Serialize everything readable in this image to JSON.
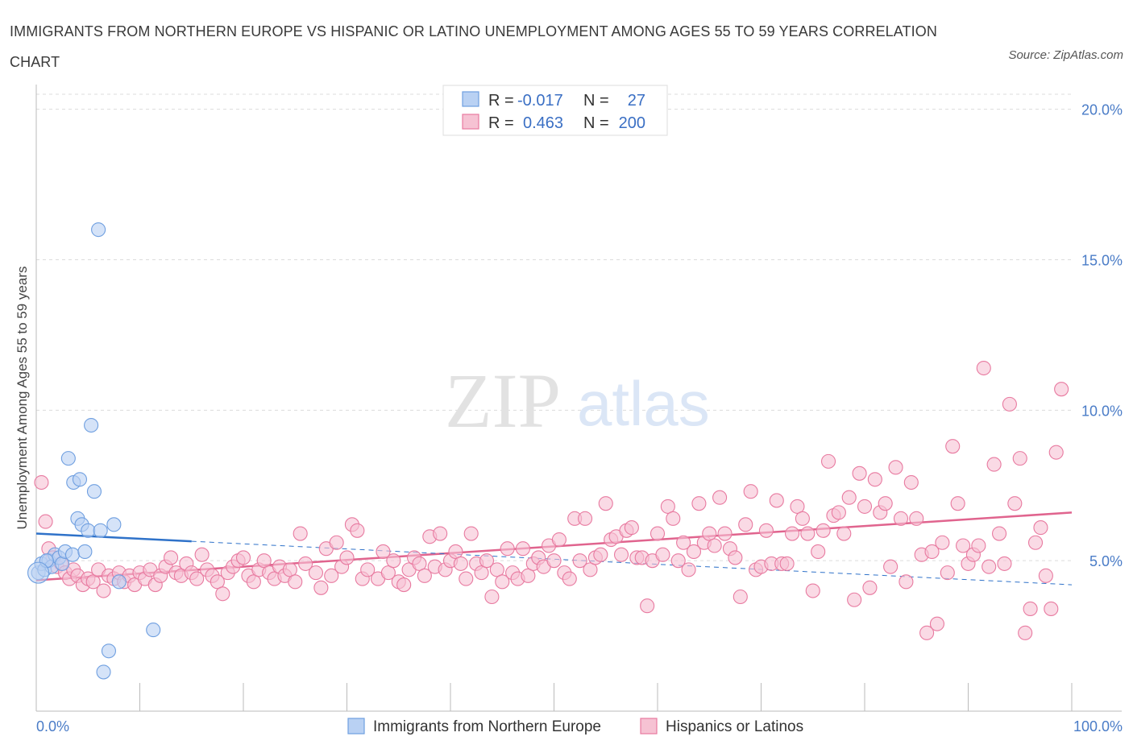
{
  "title": "IMMIGRANTS FROM NORTHERN EUROPE VS HISPANIC OR LATINO UNEMPLOYMENT AMONG AGES 55 TO 59 YEARS CORRELATION CHART",
  "source": "Source: ZipAtlas.com",
  "watermark": {
    "zip": "ZIP",
    "atlas": "atlas"
  },
  "colors": {
    "blue": "#6f9fe0",
    "blue_fill": "#b9d1f3",
    "blue_line": "#2f72c9",
    "pink": "#e87aa0",
    "pink_fill": "#f6c2d3",
    "pink_line": "#e0648e",
    "axis_text": "#4a7cc7"
  },
  "legend": {
    "rows": [
      {
        "r_label": "R =",
        "r_value": "-0.017",
        "n_label": "N =",
        "n_value": "27"
      },
      {
        "r_label": "R =",
        "r_value": "0.463",
        "n_label": "N =",
        "n_value": "200"
      }
    ]
  },
  "chart_data": {
    "type": "scatter",
    "title": "IMMIGRANTS FROM NORTHERN EUROPE VS HISPANIC OR LATINO UNEMPLOYMENT AMONG AGES 55 TO 59 YEARS CORRELATION CHART",
    "xlabel": "",
    "ylabel": "Unemployment Among Ages 55 to 59 years",
    "xlim": [
      0,
      100
    ],
    "ylim": [
      0,
      20.5
    ],
    "x_tick_labels": [
      "0.0%",
      "100.0%"
    ],
    "y_ticks": [
      5,
      10,
      15,
      20
    ],
    "y_tick_labels": [
      "5.0%",
      "10.0%",
      "15.0%",
      "20.0%"
    ],
    "grid": true,
    "legend_position": "top-center",
    "series": [
      {
        "name": "Immigrants from Northern Europe",
        "color": "#6f9fe0",
        "trend": {
          "x0": 0,
          "y0": 5.9,
          "x1": 100,
          "y1": 4.2,
          "solid_until": 15
        },
        "points": [
          [
            0.2,
            4.6
          ],
          [
            0.5,
            4.9
          ],
          [
            0.8,
            4.7
          ],
          [
            1.2,
            5.0
          ],
          [
            1.5,
            4.8
          ],
          [
            1.8,
            5.2
          ],
          [
            2.2,
            5.1
          ],
          [
            2.5,
            4.9
          ],
          [
            2.8,
            5.3
          ],
          [
            3.1,
            8.4
          ],
          [
            3.5,
            5.2
          ],
          [
            3.6,
            7.6
          ],
          [
            4.0,
            6.4
          ],
          [
            4.2,
            7.7
          ],
          [
            4.4,
            6.2
          ],
          [
            4.7,
            5.3
          ],
          [
            5.0,
            6.0
          ],
          [
            5.3,
            9.5
          ],
          [
            5.6,
            7.3
          ],
          [
            6.0,
            16.0
          ],
          [
            6.2,
            6.0
          ],
          [
            6.5,
            1.3
          ],
          [
            7.0,
            2.0
          ],
          [
            7.5,
            6.2
          ],
          [
            8.0,
            4.3
          ],
          [
            11.3,
            2.7
          ],
          [
            1.0,
            5.0
          ]
        ]
      },
      {
        "name": "Hispanics or Latinos",
        "color": "#e87aa0",
        "trend": {
          "x0": 0,
          "y0": 4.35,
          "x1": 100,
          "y1": 6.6
        },
        "points": [
          [
            0.5,
            7.6
          ],
          [
            0.9,
            6.3
          ],
          [
            1.2,
            5.4
          ],
          [
            1.6,
            5.1
          ],
          [
            2.0,
            4.8
          ],
          [
            2.4,
            4.9
          ],
          [
            2.8,
            4.6
          ],
          [
            3.2,
            4.4
          ],
          [
            3.6,
            4.7
          ],
          [
            4.0,
            4.5
          ],
          [
            4.5,
            4.2
          ],
          [
            5.0,
            4.4
          ],
          [
            5.5,
            4.3
          ],
          [
            6.0,
            4.7
          ],
          [
            6.5,
            4.0
          ],
          [
            7.0,
            4.5
          ],
          [
            7.5,
            4.4
          ],
          [
            8.0,
            4.6
          ],
          [
            8.5,
            4.3
          ],
          [
            9.0,
            4.5
          ],
          [
            9.5,
            4.2
          ],
          [
            10.0,
            4.6
          ],
          [
            10.5,
            4.4
          ],
          [
            11.0,
            4.7
          ],
          [
            11.5,
            4.2
          ],
          [
            12.0,
            4.5
          ],
          [
            12.5,
            4.8
          ],
          [
            13.0,
            5.1
          ],
          [
            13.5,
            4.6
          ],
          [
            14.0,
            4.5
          ],
          [
            14.5,
            4.9
          ],
          [
            15.0,
            4.6
          ],
          [
            15.5,
            4.4
          ],
          [
            16.0,
            5.2
          ],
          [
            16.5,
            4.7
          ],
          [
            17.0,
            4.5
          ],
          [
            17.5,
            4.3
          ],
          [
            18.0,
            3.9
          ],
          [
            18.5,
            4.6
          ],
          [
            19.0,
            4.8
          ],
          [
            19.5,
            5.0
          ],
          [
            20.0,
            5.1
          ],
          [
            20.5,
            4.5
          ],
          [
            21.0,
            4.3
          ],
          [
            21.5,
            4.7
          ],
          [
            22.0,
            5.0
          ],
          [
            22.5,
            4.6
          ],
          [
            23.0,
            4.4
          ],
          [
            23.5,
            4.8
          ],
          [
            24.0,
            4.5
          ],
          [
            24.5,
            4.7
          ],
          [
            25.0,
            4.3
          ],
          [
            25.5,
            5.9
          ],
          [
            26.0,
            4.9
          ],
          [
            27.0,
            4.6
          ],
          [
            27.5,
            4.1
          ],
          [
            28.0,
            5.4
          ],
          [
            28.5,
            4.5
          ],
          [
            29.0,
            5.6
          ],
          [
            29.5,
            4.8
          ],
          [
            30.0,
            5.1
          ],
          [
            30.5,
            6.2
          ],
          [
            31.0,
            6.0
          ],
          [
            31.5,
            4.4
          ],
          [
            32.0,
            4.7
          ],
          [
            33.0,
            4.4
          ],
          [
            33.5,
            5.3
          ],
          [
            34.0,
            4.6
          ],
          [
            34.5,
            5.0
          ],
          [
            35.0,
            4.3
          ],
          [
            35.5,
            4.2
          ],
          [
            36.0,
            4.7
          ],
          [
            36.5,
            5.1
          ],
          [
            37.0,
            4.9
          ],
          [
            37.5,
            4.5
          ],
          [
            38.0,
            5.8
          ],
          [
            38.5,
            4.8
          ],
          [
            39.0,
            5.9
          ],
          [
            39.5,
            4.7
          ],
          [
            40.0,
            5.0
          ],
          [
            40.5,
            5.3
          ],
          [
            41.0,
            4.9
          ],
          [
            41.5,
            4.4
          ],
          [
            42.0,
            5.9
          ],
          [
            42.5,
            4.9
          ],
          [
            43.0,
            4.6
          ],
          [
            43.5,
            5.0
          ],
          [
            44.0,
            3.8
          ],
          [
            44.5,
            4.7
          ],
          [
            45.0,
            4.3
          ],
          [
            45.5,
            5.4
          ],
          [
            46.0,
            4.6
          ],
          [
            46.5,
            4.4
          ],
          [
            47.0,
            5.4
          ],
          [
            47.5,
            4.5
          ],
          [
            48.0,
            4.9
          ],
          [
            48.5,
            5.1
          ],
          [
            49.0,
            4.8
          ],
          [
            49.5,
            5.5
          ],
          [
            50.0,
            5.0
          ],
          [
            50.5,
            5.7
          ],
          [
            51.0,
            4.6
          ],
          [
            51.5,
            4.4
          ],
          [
            52.0,
            6.4
          ],
          [
            52.5,
            5.0
          ],
          [
            53.0,
            6.4
          ],
          [
            53.5,
            4.7
          ],
          [
            54.0,
            5.1
          ],
          [
            54.5,
            5.2
          ],
          [
            55.0,
            6.9
          ],
          [
            55.5,
            5.7
          ],
          [
            56.0,
            5.8
          ],
          [
            56.5,
            5.2
          ],
          [
            57.0,
            6.0
          ],
          [
            57.5,
            6.1
          ],
          [
            58.0,
            5.1
          ],
          [
            58.5,
            5.1
          ],
          [
            59.0,
            3.5
          ],
          [
            59.5,
            5.0
          ],
          [
            60.0,
            5.9
          ],
          [
            60.5,
            5.2
          ],
          [
            61.0,
            6.8
          ],
          [
            61.5,
            6.4
          ],
          [
            62.0,
            5.0
          ],
          [
            62.5,
            5.6
          ],
          [
            63.0,
            4.7
          ],
          [
            63.5,
            5.3
          ],
          [
            64.0,
            6.9
          ],
          [
            64.5,
            5.6
          ],
          [
            65.0,
            5.9
          ],
          [
            65.5,
            5.5
          ],
          [
            66.0,
            7.1
          ],
          [
            66.5,
            5.9
          ],
          [
            67.0,
            5.4
          ],
          [
            67.5,
            5.1
          ],
          [
            68.0,
            3.8
          ],
          [
            68.5,
            6.2
          ],
          [
            69.0,
            7.3
          ],
          [
            69.5,
            4.7
          ],
          [
            70.0,
            4.8
          ],
          [
            70.5,
            6.0
          ],
          [
            71.0,
            4.9
          ],
          [
            71.5,
            7.0
          ],
          [
            72.0,
            4.9
          ],
          [
            72.5,
            4.9
          ],
          [
            73.0,
            5.9
          ],
          [
            73.5,
            6.8
          ],
          [
            74.0,
            6.4
          ],
          [
            74.5,
            5.9
          ],
          [
            75.0,
            4.0
          ],
          [
            75.5,
            5.3
          ],
          [
            76.0,
            6.0
          ],
          [
            76.5,
            8.3
          ],
          [
            77.0,
            6.5
          ],
          [
            77.5,
            6.6
          ],
          [
            78.0,
            5.9
          ],
          [
            78.5,
            7.1
          ],
          [
            79.0,
            3.7
          ],
          [
            79.5,
            7.9
          ],
          [
            80.0,
            6.8
          ],
          [
            80.5,
            4.1
          ],
          [
            81.0,
            7.7
          ],
          [
            81.5,
            6.6
          ],
          [
            82.0,
            6.9
          ],
          [
            82.5,
            4.8
          ],
          [
            83.0,
            8.1
          ],
          [
            83.5,
            6.4
          ],
          [
            84.0,
            4.3
          ],
          [
            84.5,
            7.6
          ],
          [
            85.0,
            6.4
          ],
          [
            85.5,
            5.2
          ],
          [
            86.0,
            2.6
          ],
          [
            86.5,
            5.3
          ],
          [
            87.0,
            2.9
          ],
          [
            87.5,
            5.6
          ],
          [
            88.0,
            4.6
          ],
          [
            88.5,
            8.8
          ],
          [
            89.0,
            6.9
          ],
          [
            89.5,
            5.5
          ],
          [
            90.0,
            4.9
          ],
          [
            90.5,
            5.2
          ],
          [
            91.0,
            5.5
          ],
          [
            91.5,
            11.4
          ],
          [
            92.0,
            4.8
          ],
          [
            92.5,
            8.2
          ],
          [
            93.0,
            5.9
          ],
          [
            93.5,
            4.9
          ],
          [
            94.0,
            10.2
          ],
          [
            94.5,
            6.9
          ],
          [
            95.0,
            8.4
          ],
          [
            95.5,
            2.6
          ],
          [
            96.0,
            3.4
          ],
          [
            96.5,
            5.6
          ],
          [
            97.0,
            6.1
          ],
          [
            97.5,
            4.5
          ],
          [
            98.0,
            3.4
          ],
          [
            98.5,
            8.6
          ],
          [
            99.0,
            10.7
          ]
        ]
      }
    ]
  },
  "bottom_legend": [
    {
      "label": "Immigrants from Northern Europe"
    },
    {
      "label": "Hispanics or Latinos"
    }
  ]
}
